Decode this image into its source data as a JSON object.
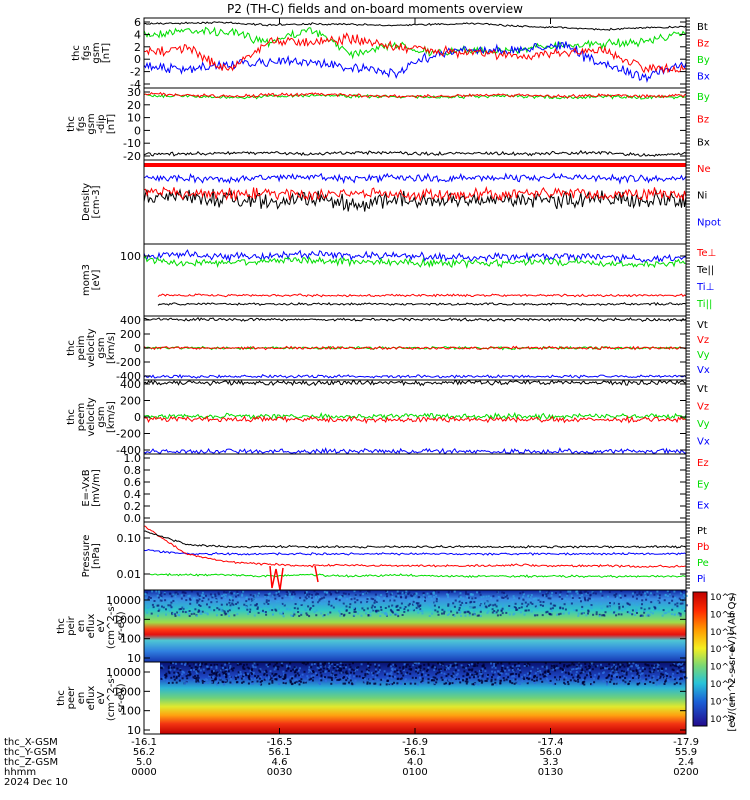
{
  "title": "P2 (TH-C) fields and on-board moments overview",
  "colors": {
    "black": "#000000",
    "red": "#ff0000",
    "green": "#00dd00",
    "blue": "#0000ff"
  },
  "panels": [
    {
      "ylabel": [
        "thc",
        "fgs",
        "gsm",
        "[nT]"
      ],
      "yticks": [
        "6",
        "4",
        "2",
        "0",
        "-2",
        "-4"
      ],
      "scale": "linear",
      "legend": [
        {
          "text": "Bt",
          "color": "#000000"
        },
        {
          "text": "Bz",
          "color": "#ff0000"
        },
        {
          "text": "By",
          "color": "#00dd00"
        },
        {
          "text": "Bx",
          "color": "#0000ff"
        }
      ]
    },
    {
      "ylabel": [
        "thc",
        "fgs",
        "gsm",
        "-dip",
        "[nT]"
      ],
      "yticks": [
        "30",
        "20",
        "10",
        "0",
        "-10",
        "-20"
      ],
      "scale": "linear",
      "legend": [
        {
          "text": "By",
          "color": "#00dd00"
        },
        {
          "text": "Bz",
          "color": "#ff0000"
        },
        {
          "text": "Bx",
          "color": "#000000"
        }
      ]
    },
    {
      "ylabel": [
        "Density",
        "[cm-3]"
      ],
      "yticks": [],
      "scale": "log",
      "legend": [
        {
          "text": "Ne",
          "color": "#ff0000"
        },
        {
          "text": "Ni",
          "color": "#000000"
        },
        {
          "text": "Npot",
          "color": "#0000ff"
        }
      ]
    },
    {
      "ylabel": [
        "mom3",
        "[eV]"
      ],
      "yticks": [
        "100"
      ],
      "scale": "log",
      "legend": [
        {
          "text": "Te⊥",
          "color": "#ff0000"
        },
        {
          "text": "Te||",
          "color": "#000000"
        },
        {
          "text": "Ti⊥",
          "color": "#0000ff"
        },
        {
          "text": "Ti||",
          "color": "#00dd00"
        }
      ]
    },
    {
      "ylabel": [
        "thc",
        "peim",
        "velocity",
        "gsm",
        "[km/s]"
      ],
      "yticks": [
        "400",
        "200",
        "0",
        "-200",
        "-400"
      ],
      "scale": "linear",
      "legend": [
        {
          "text": "Vt",
          "color": "#000000"
        },
        {
          "text": "Vz",
          "color": "#ff0000"
        },
        {
          "text": "Vy",
          "color": "#00dd00"
        },
        {
          "text": "Vx",
          "color": "#0000ff"
        }
      ]
    },
    {
      "ylabel": [
        "thc",
        "peem",
        "velocity",
        "gsm",
        "[km/s]"
      ],
      "yticks": [
        "400",
        "200",
        "0",
        "-200",
        "-400"
      ],
      "scale": "linear",
      "legend": [
        {
          "text": "Vt",
          "color": "#000000"
        },
        {
          "text": "Vz",
          "color": "#ff0000"
        },
        {
          "text": "Vy",
          "color": "#00dd00"
        },
        {
          "text": "Vx",
          "color": "#0000ff"
        }
      ]
    },
    {
      "ylabel": [
        "E=-VxB",
        "[mV/m]"
      ],
      "yticks": [
        "1.0",
        "0.8",
        "0.6",
        "0.4",
        "0.2",
        "0.0"
      ],
      "scale": "linear",
      "legend": [
        {
          "text": "Ez",
          "color": "#ff0000"
        },
        {
          "text": "Ey",
          "color": "#00dd00"
        },
        {
          "text": "Ex",
          "color": "#0000ff"
        }
      ]
    },
    {
      "ylabel": [
        "Pressure",
        "[nPa]"
      ],
      "yticks": [
        "0.10",
        "0.01"
      ],
      "scale": "log",
      "legend": [
        {
          "text": "Pt",
          "color": "#000000"
        },
        {
          "text": "Pb",
          "color": "#ff0000"
        },
        {
          "text": "Pe",
          "color": "#00dd00"
        },
        {
          "text": "Pi",
          "color": "#0000ff"
        }
      ]
    },
    {
      "ylabel": [
        "thc",
        "peir",
        "en",
        "eflux",
        "eV",
        "(cm^2-s-",
        "sr-eV)"
      ],
      "yticks": [
        "10000",
        "1000",
        "100",
        "10"
      ],
      "scale": "log",
      "legend": []
    },
    {
      "ylabel": [
        "thc",
        "peer",
        "en",
        "eflux",
        "eV",
        "(cm^2-s-",
        "sr-eV)"
      ],
      "yticks": [
        "10000",
        "1000",
        "100",
        "10"
      ],
      "scale": "log",
      "legend": []
    }
  ],
  "colorbar": {
    "label": "[eV/(cm^2-s-sr-eV)] (All Qs)",
    "ticks": [
      "10^7",
      "10^6",
      "10^5",
      "10^4",
      "10^3",
      "10^2",
      "10^1",
      "10^0"
    ]
  },
  "bottom_axis": {
    "row_labels": [
      "thc_X-GSM",
      "thc_Y-GSM",
      "thc_Z-GSM",
      "hhmm",
      "2024 Dec 10"
    ],
    "ticks": [
      {
        "x": "-16.1",
        "y": "56.2",
        "z": "5.0",
        "t": "0000"
      },
      {
        "x": "-16.5",
        "y": "56.1",
        "z": "4.6",
        "t": "0030"
      },
      {
        "x": "-16.9",
        "y": "56.1",
        "z": "4.0",
        "t": "0100"
      },
      {
        "x": "-17.4",
        "y": "56.0",
        "z": "3.3",
        "t": "0130"
      },
      {
        "x": "-17.9",
        "y": "55.9",
        "z": "2.4",
        "t": "0200"
      }
    ]
  },
  "chart_data": {
    "type": "line",
    "title": "P2 (TH-C) fields and on-board moments overview",
    "x_axis": {
      "label": "hhmm",
      "ticks": [
        "0000",
        "0030",
        "0100",
        "0130",
        "0200"
      ],
      "ephemeris": {
        "thc_X-GSM": [
          -16.1,
          -16.5,
          -16.9,
          -17.4,
          -17.9
        ],
        "thc_Y-GSM": [
          56.2,
          56.1,
          56.1,
          56.0,
          55.9
        ],
        "thc_Z-GSM": [
          5.0,
          4.6,
          4.0,
          3.3,
          2.4
        ]
      }
    },
    "panels": [
      {
        "name": "thc fgs gsm [nT]",
        "ylim": [
          -5,
          7
        ],
        "series": [
          {
            "name": "Bt",
            "values": [
              6,
              6.1,
              6.2,
              5.8,
              6.0,
              5.9,
              5.7,
              5.9,
              6.1,
              5.6,
              5.4,
              5.0,
              5.3,
              5.5
            ]
          },
          {
            "name": "Bz",
            "values": [
              1,
              2,
              -2,
              3,
              3,
              3.5,
              2,
              1.5,
              1,
              0.5,
              1,
              1.5,
              -1.5,
              -2
            ]
          },
          {
            "name": "By",
            "values": [
              4,
              5,
              4.5,
              3,
              5,
              1,
              2.5,
              1,
              1.5,
              1.5,
              2.5,
              2.5,
              3.0,
              4.5
            ]
          },
          {
            "name": "Bx",
            "values": [
              -1,
              -2,
              -1,
              -0.5,
              -0.5,
              -1.5,
              -2.5,
              1,
              1.5,
              1.5,
              2.5,
              -1,
              -3,
              -1
            ]
          }
        ]
      },
      {
        "name": "thc fgs gsm-dip [nT]",
        "ylim": [
          -25,
          35
        ],
        "series": [
          {
            "name": "By",
            "values": [
              29,
              28,
              27,
              28,
              29,
              28,
              28,
              27,
              28,
              28,
              27,
              28,
              27,
              28
            ]
          },
          {
            "name": "Bz",
            "values": [
              30,
              29,
              28,
              29,
              30,
              29,
              28,
              28,
              29,
              29,
              28,
              29,
              28,
              29
            ]
          },
          {
            "name": "Bx",
            "values": [
              -20,
              -20,
              -19,
              -19,
              -20,
              -19,
              -19,
              -20,
              -19,
              -20,
              -19,
              -19,
              -21,
              -20
            ]
          }
        ]
      },
      {
        "name": "Density [cm-3]",
        "series": [
          {
            "name": "Ne",
            "values": [
              0.3,
              0.28,
              0.26,
              0.27,
              0.25,
              0.27,
              0.26,
              0.24,
              0.25,
              0.26,
              0.27,
              0.25,
              0.26,
              0.25
            ]
          },
          {
            "name": "Ni",
            "values": [
              0.25,
              0.22,
              0.2,
              0.18,
              0.22,
              0.15,
              0.2,
              0.18,
              0.2,
              0.2,
              0.18,
              0.2,
              0.19,
              0.2
            ]
          },
          {
            "name": "Npot",
            "values": [
              0.6,
              0.6,
              0.55,
              0.6,
              0.62,
              0.58,
              0.6,
              0.58,
              0.6,
              0.6,
              0.62,
              0.6,
              0.56,
              0.6
            ]
          }
        ]
      },
      {
        "name": "mom3 [eV]",
        "series": [
          {
            "name": "Te⊥",
            "values": [
              null,
              10,
              10,
              10,
              10,
              10,
              10,
              10,
              10,
              10,
              10,
              10,
              10,
              10
            ]
          },
          {
            "name": "Te||",
            "values": [
              null,
              6,
              6,
              6,
              6,
              6,
              6,
              6,
              6,
              6,
              6,
              6,
              6,
              6
            ]
          },
          {
            "name": "Ti⊥",
            "values": [
              100,
              110,
              95,
              105,
              110,
              100,
              100,
              95,
              90,
              95,
              100,
              95,
              80,
              90
            ]
          },
          {
            "name": "Ti||",
            "values": [
              80,
              65,
              70,
              75,
              80,
              70,
              70,
              65,
              65,
              70,
              70,
              65,
              60,
              70
            ]
          }
        ]
      },
      {
        "name": "thc peim velocity gsm [km/s]",
        "ylim": [
          -450,
          450
        ],
        "series": [
          {
            "name": "Vt",
            "values": [
              400,
              400,
              400,
              400,
              400,
              400,
              400,
              400,
              400,
              400,
              400,
              400,
              400,
              400
            ]
          },
          {
            "name": "Vz",
            "values": [
              0,
              0,
              0,
              0,
              0,
              0,
              0,
              0,
              0,
              0,
              0,
              0,
              0,
              0
            ]
          },
          {
            "name": "Vy",
            "values": [
              0,
              0,
              0,
              0,
              0,
              0,
              0,
              0,
              0,
              0,
              0,
              0,
              0,
              0
            ]
          },
          {
            "name": "Vx",
            "values": [
              -400,
              -400,
              -400,
              -400,
              -400,
              -400,
              -400,
              -400,
              -400,
              -400,
              -400,
              -400,
              -400,
              -400
            ]
          }
        ]
      },
      {
        "name": "thc peem velocity gsm [km/s]",
        "ylim": [
          -450,
          450
        ],
        "series": [
          {
            "name": "Vt",
            "values": [
              420,
              420,
              420,
              420,
              420,
              420,
              420,
              420,
              420,
              420,
              420,
              420,
              420,
              420
            ]
          },
          {
            "name": "Vz",
            "values": [
              -30,
              -30,
              -30,
              -30,
              -30,
              -30,
              -30,
              -30,
              -30,
              -30,
              -30,
              -30,
              -30,
              -30
            ]
          },
          {
            "name": "Vy",
            "values": [
              10,
              10,
              10,
              10,
              10,
              10,
              10,
              10,
              10,
              10,
              10,
              10,
              10,
              10
            ]
          },
          {
            "name": "Vx",
            "values": [
              -420,
              -420,
              -420,
              -420,
              -420,
              -420,
              -420,
              -420,
              -420,
              -420,
              -420,
              -420,
              -420,
              -420
            ]
          }
        ]
      },
      {
        "name": "E=-VxB [mV/m]",
        "ylim": [
          0,
          1.0
        ],
        "series": []
      },
      {
        "name": "Pressure [nPa]",
        "series": [
          {
            "name": "Pt",
            "values": [
              0.15,
              0.07,
              0.06,
              0.06,
              0.06,
              0.06,
              0.06,
              0.06,
              0.06,
              0.06,
              0.06,
              0.06,
              0.06,
              0.06
            ]
          },
          {
            "name": "Pb",
            "values": [
              0.2,
              0.04,
              0.025,
              0.022,
              0.02,
              0.021,
              0.02,
              0.02,
              0.02,
              0.021,
              0.02,
              0.02,
              0.019,
              0.02
            ]
          },
          {
            "name": "Pe",
            "values": [
              null,
              0.012,
              0.012,
              0.011,
              0.012,
              0.011,
              0.012,
              0.011,
              0.011,
              0.011,
              0.011,
              0.011,
              0.011,
              0.011
            ]
          },
          {
            "name": "Pi",
            "values": [
              0.05,
              0.04,
              0.04,
              0.04,
              0.04,
              0.04,
              0.04,
              0.04,
              0.04,
              0.04,
              0.04,
              0.04,
              0.04,
              0.04
            ]
          }
        ]
      },
      {
        "name": "thc peir en eflux",
        "type": "heatmap",
        "ylim": [
          10,
          20000
        ]
      },
      {
        "name": "thc peer en eflux",
        "type": "heatmap",
        "ylim": [
          10,
          20000
        ]
      }
    ]
  }
}
